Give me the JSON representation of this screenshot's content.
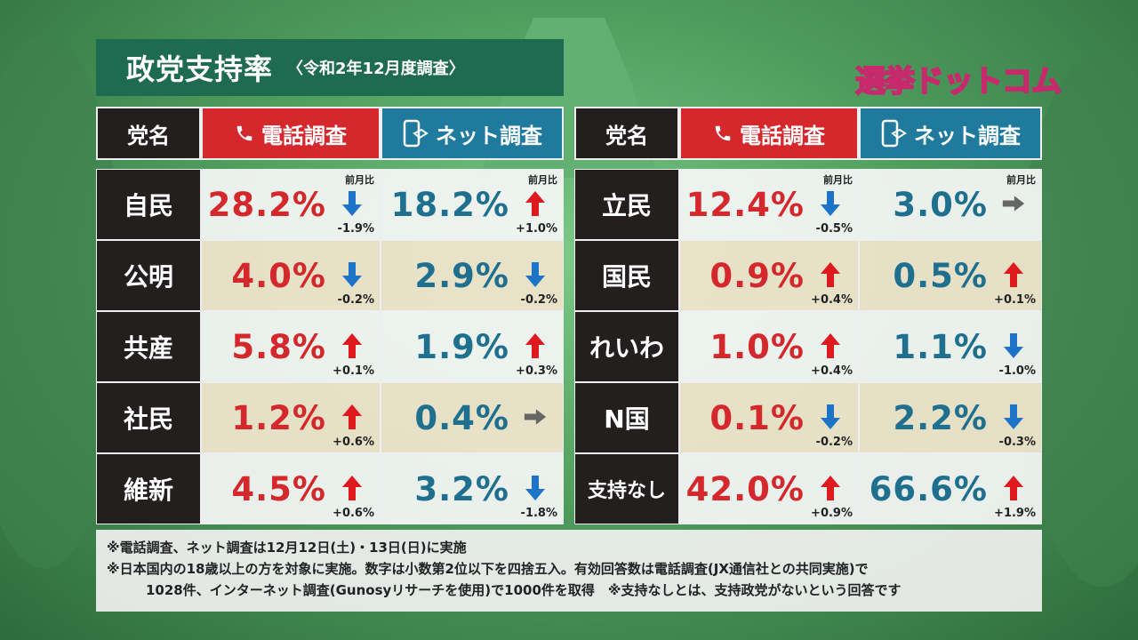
{
  "title": "政党支持率",
  "subtitle": "〈令和2年12月度調査〉",
  "logo": "選挙ドットコム",
  "headers": {
    "party": "党名",
    "phone": "電話調査",
    "net": "ネット調査"
  },
  "prev_label": "前月比",
  "colors": {
    "phone": "#d5282c",
    "net": "#1f7a9e",
    "up": "#e0191e",
    "down": "#1d73c8",
    "flat": "#666666"
  },
  "left_rows": [
    {
      "party": "自民",
      "phone": "28.2%",
      "phone_delta": "-1.9%",
      "phone_dir": "down",
      "net": "18.2%",
      "net_delta": "+1.0%",
      "net_dir": "up",
      "show_prev": true
    },
    {
      "party": "公明",
      "phone": "4.0%",
      "phone_delta": "-0.2%",
      "phone_dir": "down",
      "net": "2.9%",
      "net_delta": "-0.2%",
      "net_dir": "down"
    },
    {
      "party": "共産",
      "phone": "5.8%",
      "phone_delta": "+0.1%",
      "phone_dir": "up",
      "net": "1.9%",
      "net_delta": "+0.3%",
      "net_dir": "up"
    },
    {
      "party": "社民",
      "phone": "1.2%",
      "phone_delta": "+0.6%",
      "phone_dir": "up",
      "net": "0.4%",
      "net_delta": "",
      "net_dir": "flat"
    },
    {
      "party": "維新",
      "phone": "4.5%",
      "phone_delta": "+0.6%",
      "phone_dir": "up",
      "net": "3.2%",
      "net_delta": "-1.8%",
      "net_dir": "down"
    }
  ],
  "right_rows": [
    {
      "party": "立民",
      "phone": "12.4%",
      "phone_delta": "-0.5%",
      "phone_dir": "down",
      "net": "3.0%",
      "net_delta": "",
      "net_dir": "flat",
      "show_prev": true
    },
    {
      "party": "国民",
      "phone": "0.9%",
      "phone_delta": "+0.4%",
      "phone_dir": "up",
      "net": "0.5%",
      "net_delta": "+0.1%",
      "net_dir": "up"
    },
    {
      "party": "れいわ",
      "phone": "1.0%",
      "phone_delta": "+0.4%",
      "phone_dir": "up",
      "net": "1.1%",
      "net_delta": "-1.0%",
      "net_dir": "down"
    },
    {
      "party": "N国",
      "phone": "0.1%",
      "phone_delta": "-0.2%",
      "phone_dir": "down",
      "net": "2.2%",
      "net_delta": "-0.3%",
      "net_dir": "down"
    },
    {
      "party": "支持なし",
      "phone": "42.0%",
      "phone_delta": "+0.9%",
      "phone_dir": "up",
      "net": "66.6%",
      "net_delta": "+1.9%",
      "net_dir": "up"
    }
  ],
  "notes": [
    "※電話調査、ネット調査は12月12日(土)・13日(日)に実施",
    "※日本国内の18歳以上の方を対象に実施。数字は小数第2位以下を四捨五入。有効回答数は電話調査(JX通信社との共同実施)で",
    "1028件、インターネット調査(Gunosyリサーチを使用)で1000件を取得　※支持なしとは、支持政党がないという回答です"
  ]
}
